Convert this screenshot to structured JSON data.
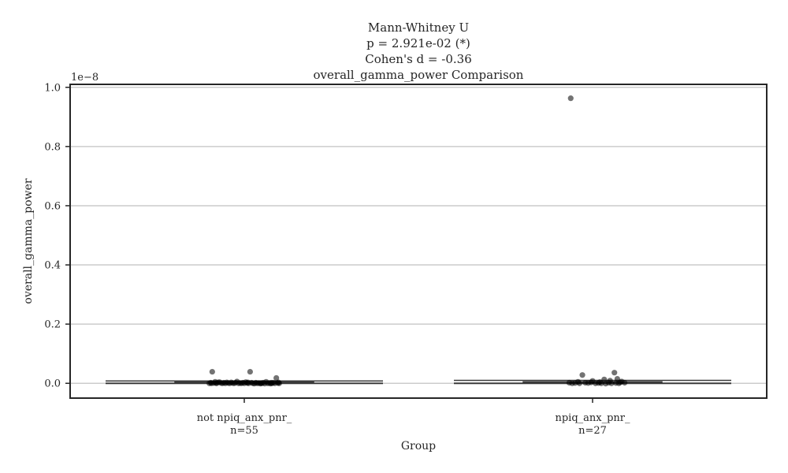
{
  "chart_data": {
    "type": "box",
    "title_lines": [
      "Mann-Whitney U",
      "p = 2.921e-02 (*)",
      "Cohen's d = -0.36",
      "overall_gamma_power Comparison"
    ],
    "xlabel": "Group",
    "ylabel": "overall_gamma_power",
    "y_offset_label": "1e−8",
    "ylim": [
      -0.05,
      1.01
    ],
    "yticks": [
      0.0,
      0.2,
      0.4,
      0.6,
      0.8,
      1.0
    ],
    "ytick_labels": [
      "0.0",
      "0.2",
      "0.4",
      "0.6",
      "0.8",
      "1.0"
    ],
    "grid": "horizontal",
    "groups": [
      {
        "label": "not npiq_anx_pnr_",
        "n_label": "n=55",
        "box": {
          "q1": 0.0,
          "median": 0.001,
          "q3": 0.004,
          "whisker_low": 0.0,
          "whisker_high": 0.008
        },
        "points": [
          [
            -0.22,
            0.039
          ],
          [
            0.04,
            0.039
          ],
          [
            0.22,
            0.018
          ],
          [
            -0.2,
            0.005
          ],
          [
            -0.17,
            0.004
          ],
          [
            -0.12,
            0.003
          ],
          [
            -0.05,
            0.006
          ],
          [
            0.01,
            0.004
          ],
          [
            0.08,
            0.002
          ],
          [
            0.15,
            0.005
          ],
          [
            -0.24,
            0.0
          ],
          [
            -0.23,
            0.002
          ],
          [
            -0.21,
            0.001
          ],
          [
            -0.19,
            0.0
          ],
          [
            -0.18,
            0.003
          ],
          [
            -0.16,
            0.001
          ],
          [
            -0.15,
            0.0
          ],
          [
            -0.14,
            0.002
          ],
          [
            -0.11,
            0.001
          ],
          [
            -0.1,
            0.0
          ],
          [
            -0.09,
            0.003
          ],
          [
            -0.08,
            0.001
          ],
          [
            -0.07,
            0.0
          ],
          [
            -0.06,
            0.002
          ],
          [
            -0.04,
            0.0
          ],
          [
            -0.03,
            0.001
          ],
          [
            -0.02,
            0.0
          ],
          [
            -0.01,
            0.002
          ],
          [
            0.0,
            0.0
          ],
          [
            0.02,
            0.001
          ],
          [
            0.03,
            0.0
          ],
          [
            0.05,
            0.002
          ],
          [
            0.06,
            0.0
          ],
          [
            0.07,
            -0.001
          ],
          [
            0.09,
            0.0
          ],
          [
            0.1,
            0.001
          ],
          [
            0.11,
            -0.001
          ],
          [
            0.12,
            0.0
          ],
          [
            0.13,
            0.002
          ],
          [
            0.14,
            -0.001
          ],
          [
            0.16,
            0.0
          ],
          [
            0.17,
            0.001
          ],
          [
            0.18,
            -0.001
          ],
          [
            0.19,
            0.0
          ],
          [
            0.2,
            0.002
          ],
          [
            0.21,
            0.0
          ],
          [
            0.23,
            0.001
          ],
          [
            0.24,
            0.0
          ],
          [
            -0.225,
            0.0
          ],
          [
            -0.195,
            0.001
          ],
          [
            -0.13,
            0.0
          ],
          [
            0.025,
            0.003
          ],
          [
            0.115,
            0.001
          ],
          [
            0.185,
            0.002
          ],
          [
            0.235,
            0.003
          ]
        ]
      },
      {
        "label": "npiq_anx_pnr_",
        "n_label": "n=27",
        "box": {
          "q1": 0.0,
          "median": 0.002,
          "q3": 0.005,
          "whisker_low": 0.0,
          "whisker_high": 0.01
        },
        "points": [
          [
            -0.15,
            0.963
          ],
          [
            -0.07,
            0.028
          ],
          [
            0.15,
            0.036
          ],
          [
            0.08,
            0.013
          ],
          [
            0.17,
            0.015
          ],
          [
            -0.1,
            0.005
          ],
          [
            0.0,
            0.008
          ],
          [
            0.05,
            0.004
          ],
          [
            0.2,
            0.006
          ],
          [
            0.12,
            0.009
          ],
          [
            -0.16,
            0.002
          ],
          [
            -0.14,
            0.0
          ],
          [
            -0.12,
            0.001
          ],
          [
            -0.09,
            0.0
          ],
          [
            -0.05,
            0.002
          ],
          [
            -0.03,
            0.001
          ],
          [
            -0.01,
            0.003
          ],
          [
            0.02,
            0.0
          ],
          [
            0.04,
            0.001
          ],
          [
            0.06,
            0.0
          ],
          [
            0.09,
            -0.001
          ],
          [
            0.11,
            0.002
          ],
          [
            0.13,
            0.0
          ],
          [
            0.16,
            0.001
          ],
          [
            0.18,
            0.0
          ],
          [
            0.19,
            0.003
          ],
          [
            0.22,
            0.002
          ]
        ]
      }
    ]
  }
}
